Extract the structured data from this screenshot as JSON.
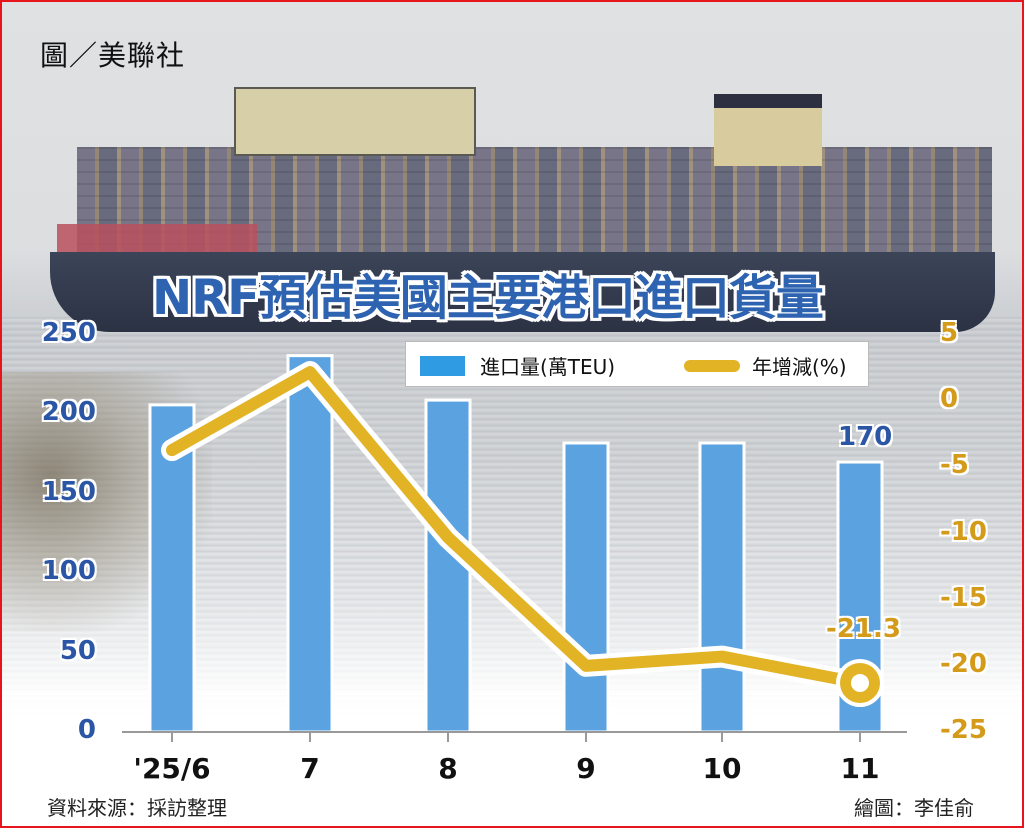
{
  "photo_credit": "圖／美聯社",
  "title": "NRF預估美國主要港口進口貨量",
  "legend": {
    "bar_label": "進口量(萬TEU)",
    "line_label": "年增減(%)"
  },
  "colors": {
    "bar": "#5aa2e0",
    "bar_legend": "#2f9be2",
    "line": "#e2b325",
    "left_axis_text": "#2b55a5",
    "right_axis_text": "#d49a1a",
    "frame_border": "#e8141b"
  },
  "footer": {
    "source": "資料來源：採訪整理",
    "credit": "繪圖：李佳俞"
  },
  "annotations": {
    "last_bar_value": "170",
    "last_line_value": "-21.3"
  },
  "chart_data": {
    "type": "bar",
    "combo": "bar+line (dual axis)",
    "title": "NRF預估美國主要港口進口貨量",
    "categories": [
      "'25/6",
      "7",
      "8",
      "9",
      "10",
      "11"
    ],
    "series": [
      {
        "name": "進口量(萬TEU)",
        "type": "bar",
        "axis": "left",
        "values": [
          206,
          237,
          209,
          182,
          182,
          170
        ]
      },
      {
        "name": "年增減(%)",
        "type": "line",
        "axis": "right",
        "values": [
          -3.7,
          2.2,
          -10.3,
          -20.0,
          -19.3,
          -21.3
        ]
      }
    ],
    "left_axis": {
      "ylim": [
        0,
        250
      ],
      "ticks": [
        "250",
        "200",
        "150",
        "100",
        "50",
        "0"
      ]
    },
    "right_axis": {
      "ylim": [
        -25,
        5
      ],
      "ticks": [
        "5",
        "0",
        "-5",
        "-10",
        "-15",
        "-20",
        "-25"
      ]
    },
    "data_labels": {
      "bar_last": "170",
      "line_last": "-21.3"
    },
    "xlabel": "",
    "ylabel_left": "萬TEU",
    "ylabel_right": "%",
    "legend_position": "top-right",
    "grid": false
  }
}
